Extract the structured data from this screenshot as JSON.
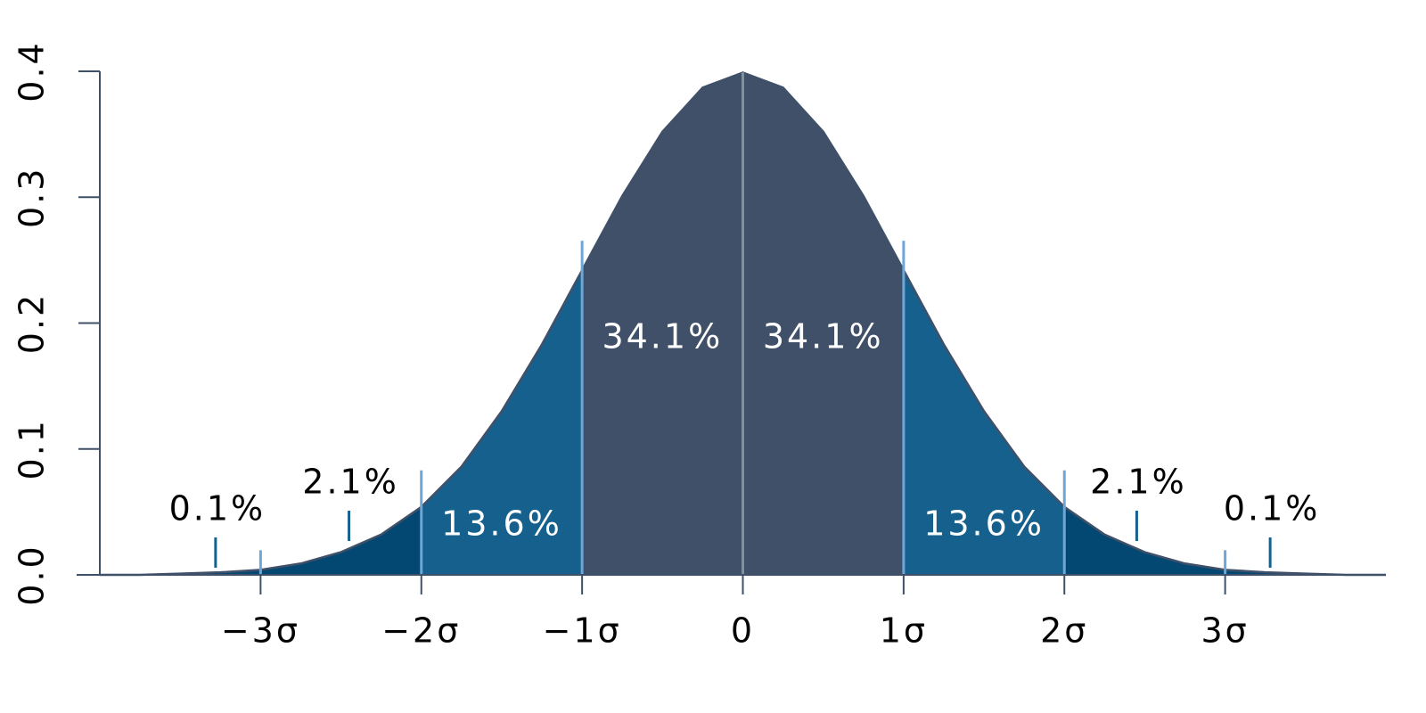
{
  "chart_data": {
    "type": "normal-density",
    "curve": {
      "color": "#3f5068",
      "x": [
        -4,
        -3.75,
        -3.5,
        -3.25,
        -3,
        -2.75,
        -2.5,
        -2.25,
        -2,
        -1.75,
        -1.5,
        -1.25,
        -1,
        -0.75,
        -0.5,
        -0.25,
        0,
        0.25,
        0.5,
        0.75,
        1,
        1.25,
        1.5,
        1.75,
        2,
        2.25,
        2.5,
        2.75,
        3,
        3.25,
        3.5,
        3.75,
        4
      ],
      "values": [
        0.0,
        0.0,
        0.001,
        0.002,
        0.004,
        0.009,
        0.018,
        0.032,
        0.054,
        0.086,
        0.13,
        0.183,
        0.242,
        0.301,
        0.352,
        0.387,
        0.399,
        0.387,
        0.352,
        0.301,
        0.242,
        0.183,
        0.13,
        0.086,
        0.054,
        0.032,
        0.018,
        0.009,
        0.004,
        0.002,
        0.001,
        0.0,
        0.0
      ]
    },
    "bands": {
      "edges": [
        -4,
        -3,
        -2,
        -1,
        0,
        1,
        2,
        3,
        4
      ],
      "values": [
        0.1,
        2.1,
        13.6,
        34.1,
        34.1,
        13.6,
        2.1,
        0.1
      ],
      "value_labels": [
        "0.1%",
        "2.1%",
        "13.6%",
        "34.1%",
        "34.1%",
        "13.6%",
        "2.1%",
        "0.1%"
      ],
      "colors": [
        "#024873",
        "#024873",
        "#16608e",
        "#3f5068",
        "#3f5068",
        "#16608e",
        "#024873",
        "#024873"
      ]
    },
    "xlim": [
      -4,
      4
    ],
    "xticks": [
      {
        "value": -3,
        "label": "−3σ"
      },
      {
        "value": -2,
        "label": "−2σ"
      },
      {
        "value": -1,
        "label": "−1σ"
      },
      0,
      {
        "value": 1,
        "label": "1σ"
      },
      {
        "value": 2,
        "label": "2σ"
      },
      {
        "value": 3,
        "label": "3σ"
      }
    ],
    "ylim": [
      0,
      0.4
    ],
    "yticks": [
      {
        "value": 0,
        "label": "0.0"
      },
      0.1,
      0.2,
      0.3,
      0.4
    ]
  }
}
